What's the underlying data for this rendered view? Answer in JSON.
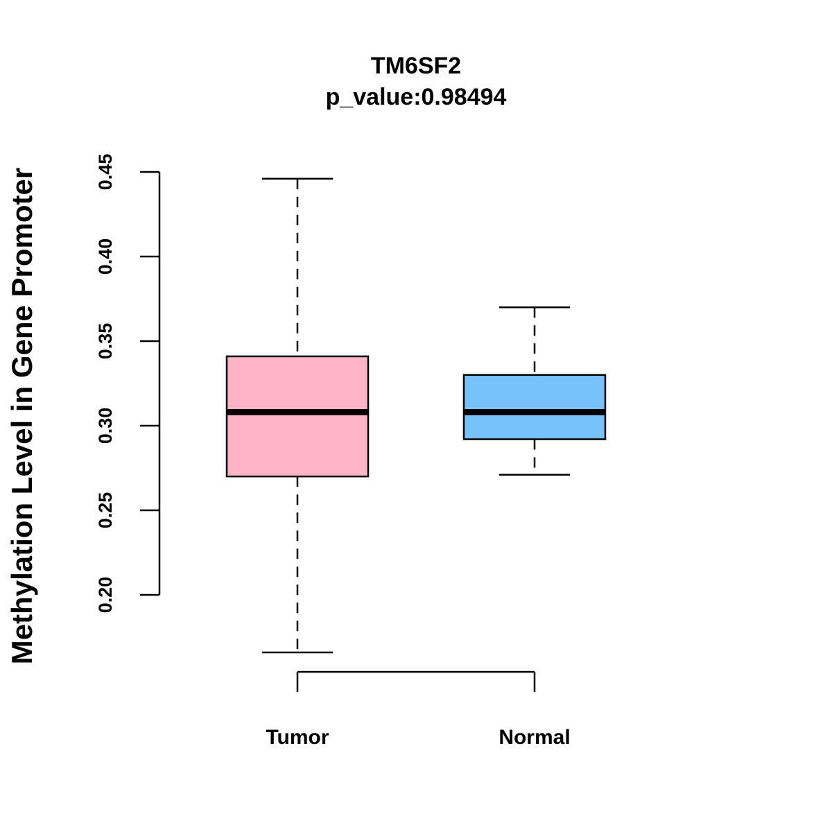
{
  "chart_data": {
    "type": "boxplot",
    "title": "TM6SF2",
    "subtitle": "p_value:0.98494",
    "xlabel": "",
    "ylabel": "Methylation Level in Gene Promoter",
    "ylim": [
      0.2,
      0.45
    ],
    "yticks": [
      0.2,
      0.25,
      0.3,
      0.35,
      0.4,
      0.45
    ],
    "ytick_labels": [
      "0.20",
      "0.25",
      "0.30",
      "0.35",
      "0.40",
      "0.45"
    ],
    "grid": false,
    "categories": [
      "Tumor",
      "Normal"
    ],
    "series": [
      {
        "name": "Tumor",
        "min": 0.166,
        "q1": 0.27,
        "median": 0.308,
        "q3": 0.341,
        "max": 0.446,
        "color": "#FFB3C6"
      },
      {
        "name": "Normal",
        "min": 0.271,
        "q1": 0.292,
        "median": 0.308,
        "q3": 0.33,
        "max": 0.37,
        "color": "#77C2F9"
      }
    ]
  }
}
